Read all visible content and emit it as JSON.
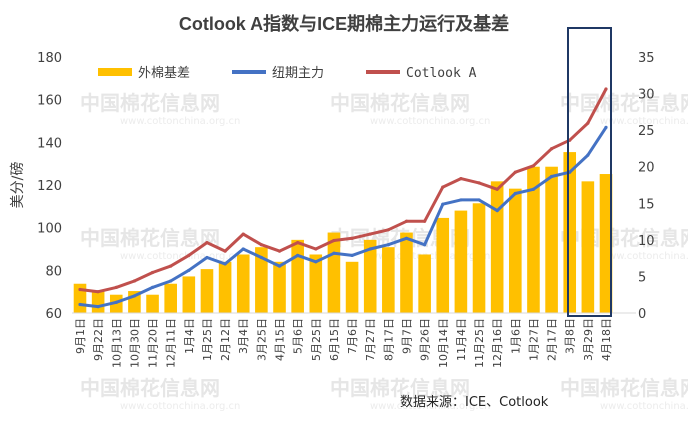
{
  "chart_data": {
    "type": "bar+line",
    "title": "Cotlook A指数与ICE期棉主力运行及基差",
    "ylabel": "美分/磅",
    "ylim": [
      60,
      180
    ],
    "y_ticks": [
      "60",
      "80",
      "100",
      "120",
      "140",
      "160",
      "180"
    ],
    "y2lim": [
      0,
      35
    ],
    "y2_ticks": [
      "0",
      "5",
      "10",
      "15",
      "20",
      "25",
      "30",
      "35"
    ],
    "x_tick_labels": [
      "9月1日",
      "9月22日",
      "10月13日",
      "10月30日",
      "11月20日",
      "12月11日",
      "1月4日",
      "1月25日",
      "2月12日",
      "3月4日",
      "3月25日",
      "4月15日",
      "5月6日",
      "5月25日",
      "6月15日",
      "7月6日",
      "7月27日",
      "8月17日",
      "9月7日",
      "9月26日",
      "10月14日",
      "11月4日",
      "11月25日",
      "12月16日",
      "1月6日",
      "1月27日",
      "2月17日",
      "3月8日",
      "3月29日",
      "4月18日"
    ],
    "series": [
      {
        "name": "外棉基差",
        "type": "bar",
        "axis": "right",
        "color": "#FFC000",
        "values": [
          4,
          3,
          2.5,
          3,
          2.5,
          4,
          5,
          6,
          7,
          8,
          9,
          7,
          10,
          8,
          11,
          7,
          10,
          9,
          11,
          8,
          13,
          14,
          15,
          18,
          17,
          20,
          20,
          22,
          18,
          19
        ]
      },
      {
        "name": "纽期主力",
        "type": "line",
        "axis": "left",
        "color": "#4472C4",
        "values": [
          64,
          63,
          65,
          68,
          72,
          75,
          80,
          86,
          83,
          90,
          86,
          82,
          87,
          84,
          88,
          87,
          90,
          92,
          95,
          92,
          111,
          113,
          113,
          108,
          116,
          118,
          124,
          126,
          134,
          147
        ]
      },
      {
        "name": "Cotlook A",
        "type": "line",
        "axis": "left",
        "color": "#C0504D",
        "values": [
          71,
          70,
          72,
          75,
          79,
          82,
          87,
          93,
          89,
          97,
          92,
          89,
          93,
          90,
          94,
          95,
          97,
          99,
          103,
          103,
          119,
          123,
          121,
          118,
          126,
          129,
          137,
          141,
          149,
          165
        ]
      }
    ],
    "source_note": "数据来源：ICE、Cotlook",
    "highlight": "last two months boxed",
    "watermark_text": "中国棉花信息网",
    "watermark_url": "www.cottonchina.org.cn"
  }
}
